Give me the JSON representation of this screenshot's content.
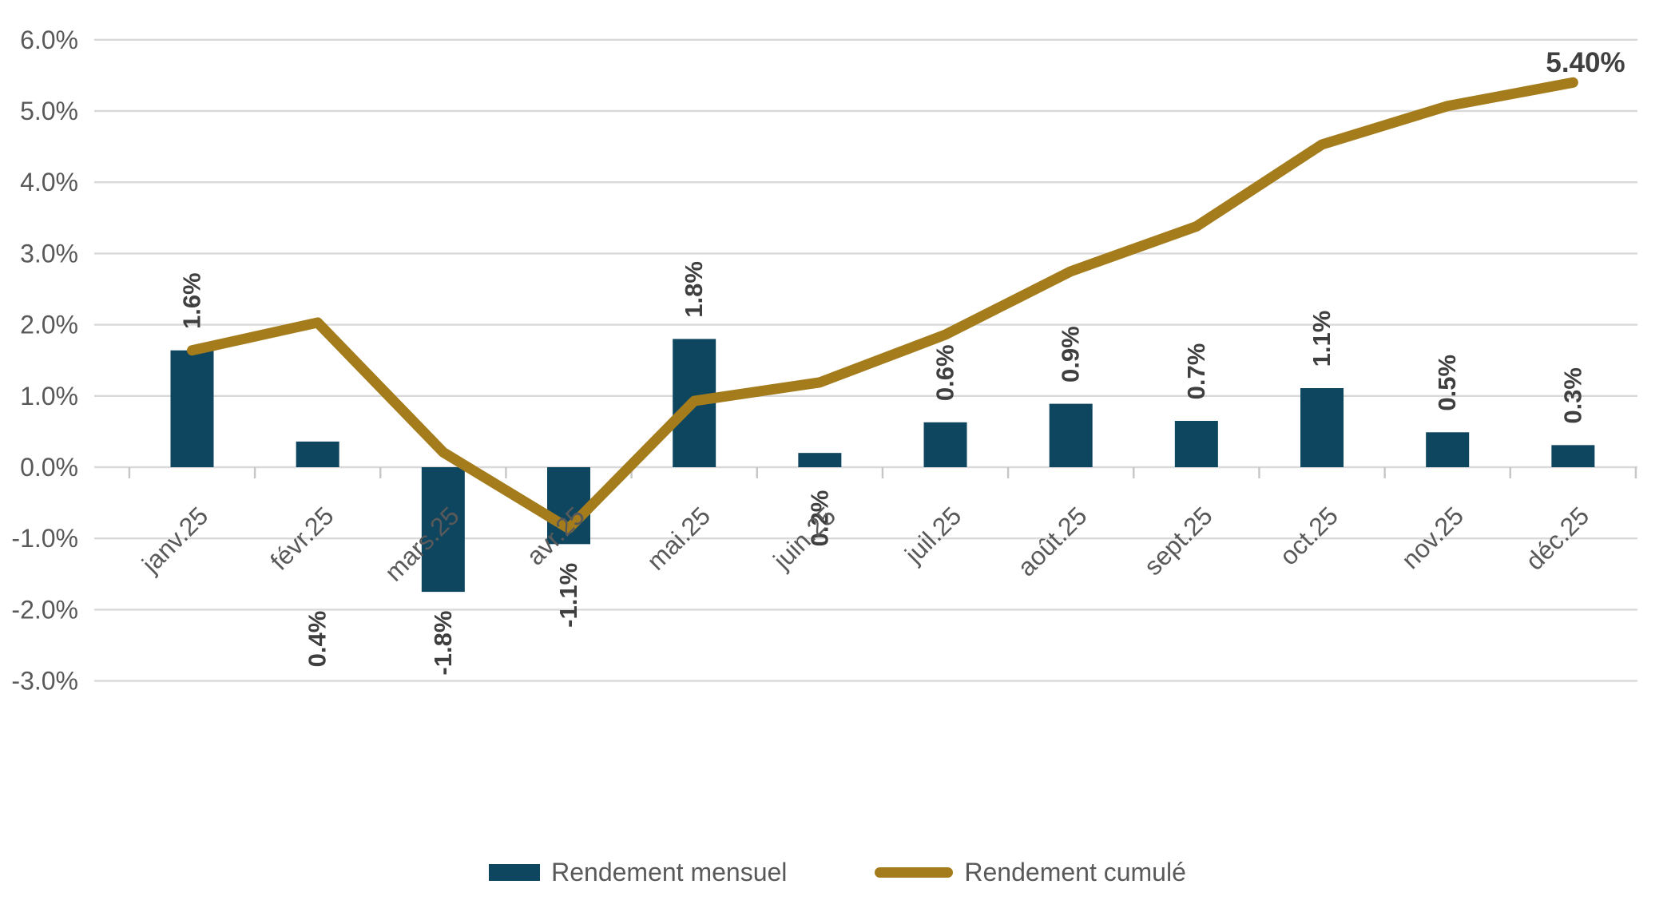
{
  "chart_data": {
    "type": "bar",
    "subtype": "combo-bar-line",
    "categories": [
      "janv.25",
      "févr.25",
      "mars.25",
      "avr.25",
      "mai.25",
      "juin.25",
      "juil.25",
      "août.25",
      "sept.25",
      "oct.25",
      "nov.25",
      "déc.25"
    ],
    "series": [
      {
        "name": "Rendement mensuel",
        "type": "bar",
        "color": "#0E4660",
        "values": [
          1.64,
          0.36,
          -1.75,
          -1.08,
          1.8,
          0.2,
          0.63,
          0.89,
          0.65,
          1.11,
          0.49,
          0.31
        ],
        "labels": [
          "1.6%",
          "0.4%",
          "-1.8%",
          "-1.1%",
          "1.8%",
          "0.2%",
          "0.6%",
          "0.9%",
          "0.7%",
          "1.1%",
          "0.5%",
          "0.3%"
        ],
        "label_placements": [
          "above",
          "bottom",
          "below",
          "below",
          "above",
          "below",
          "above",
          "above",
          "above",
          "above",
          "above",
          "above"
        ]
      },
      {
        "name": "Rendement cumulé",
        "type": "line",
        "color": "#A47C1B",
        "values": [
          1.64,
          2.03,
          0.21,
          -0.86,
          0.93,
          1.19,
          1.86,
          2.75,
          3.38,
          4.53,
          5.07,
          5.4
        ],
        "end_label": "5.40%"
      }
    ],
    "title": "",
    "xlabel": "",
    "ylabel": "",
    "ylim": [
      -3,
      6
    ],
    "y_tick_step": 1,
    "y_tick_labels": [
      "6.0%",
      "5.0%",
      "4.0%",
      "3.0%",
      "2.0%",
      "1.0%",
      "0.0%",
      "-1.0%",
      "-2.0%",
      "-3.0%"
    ],
    "grid": true,
    "legend_position": "bottom"
  },
  "styles": {
    "gridline_color": "#D9D9D9",
    "tick_color": "#C6C6C6",
    "axis_label_color": "#595959",
    "bar_label_color": "#3F3F3F",
    "end_label_color": "#404040"
  }
}
